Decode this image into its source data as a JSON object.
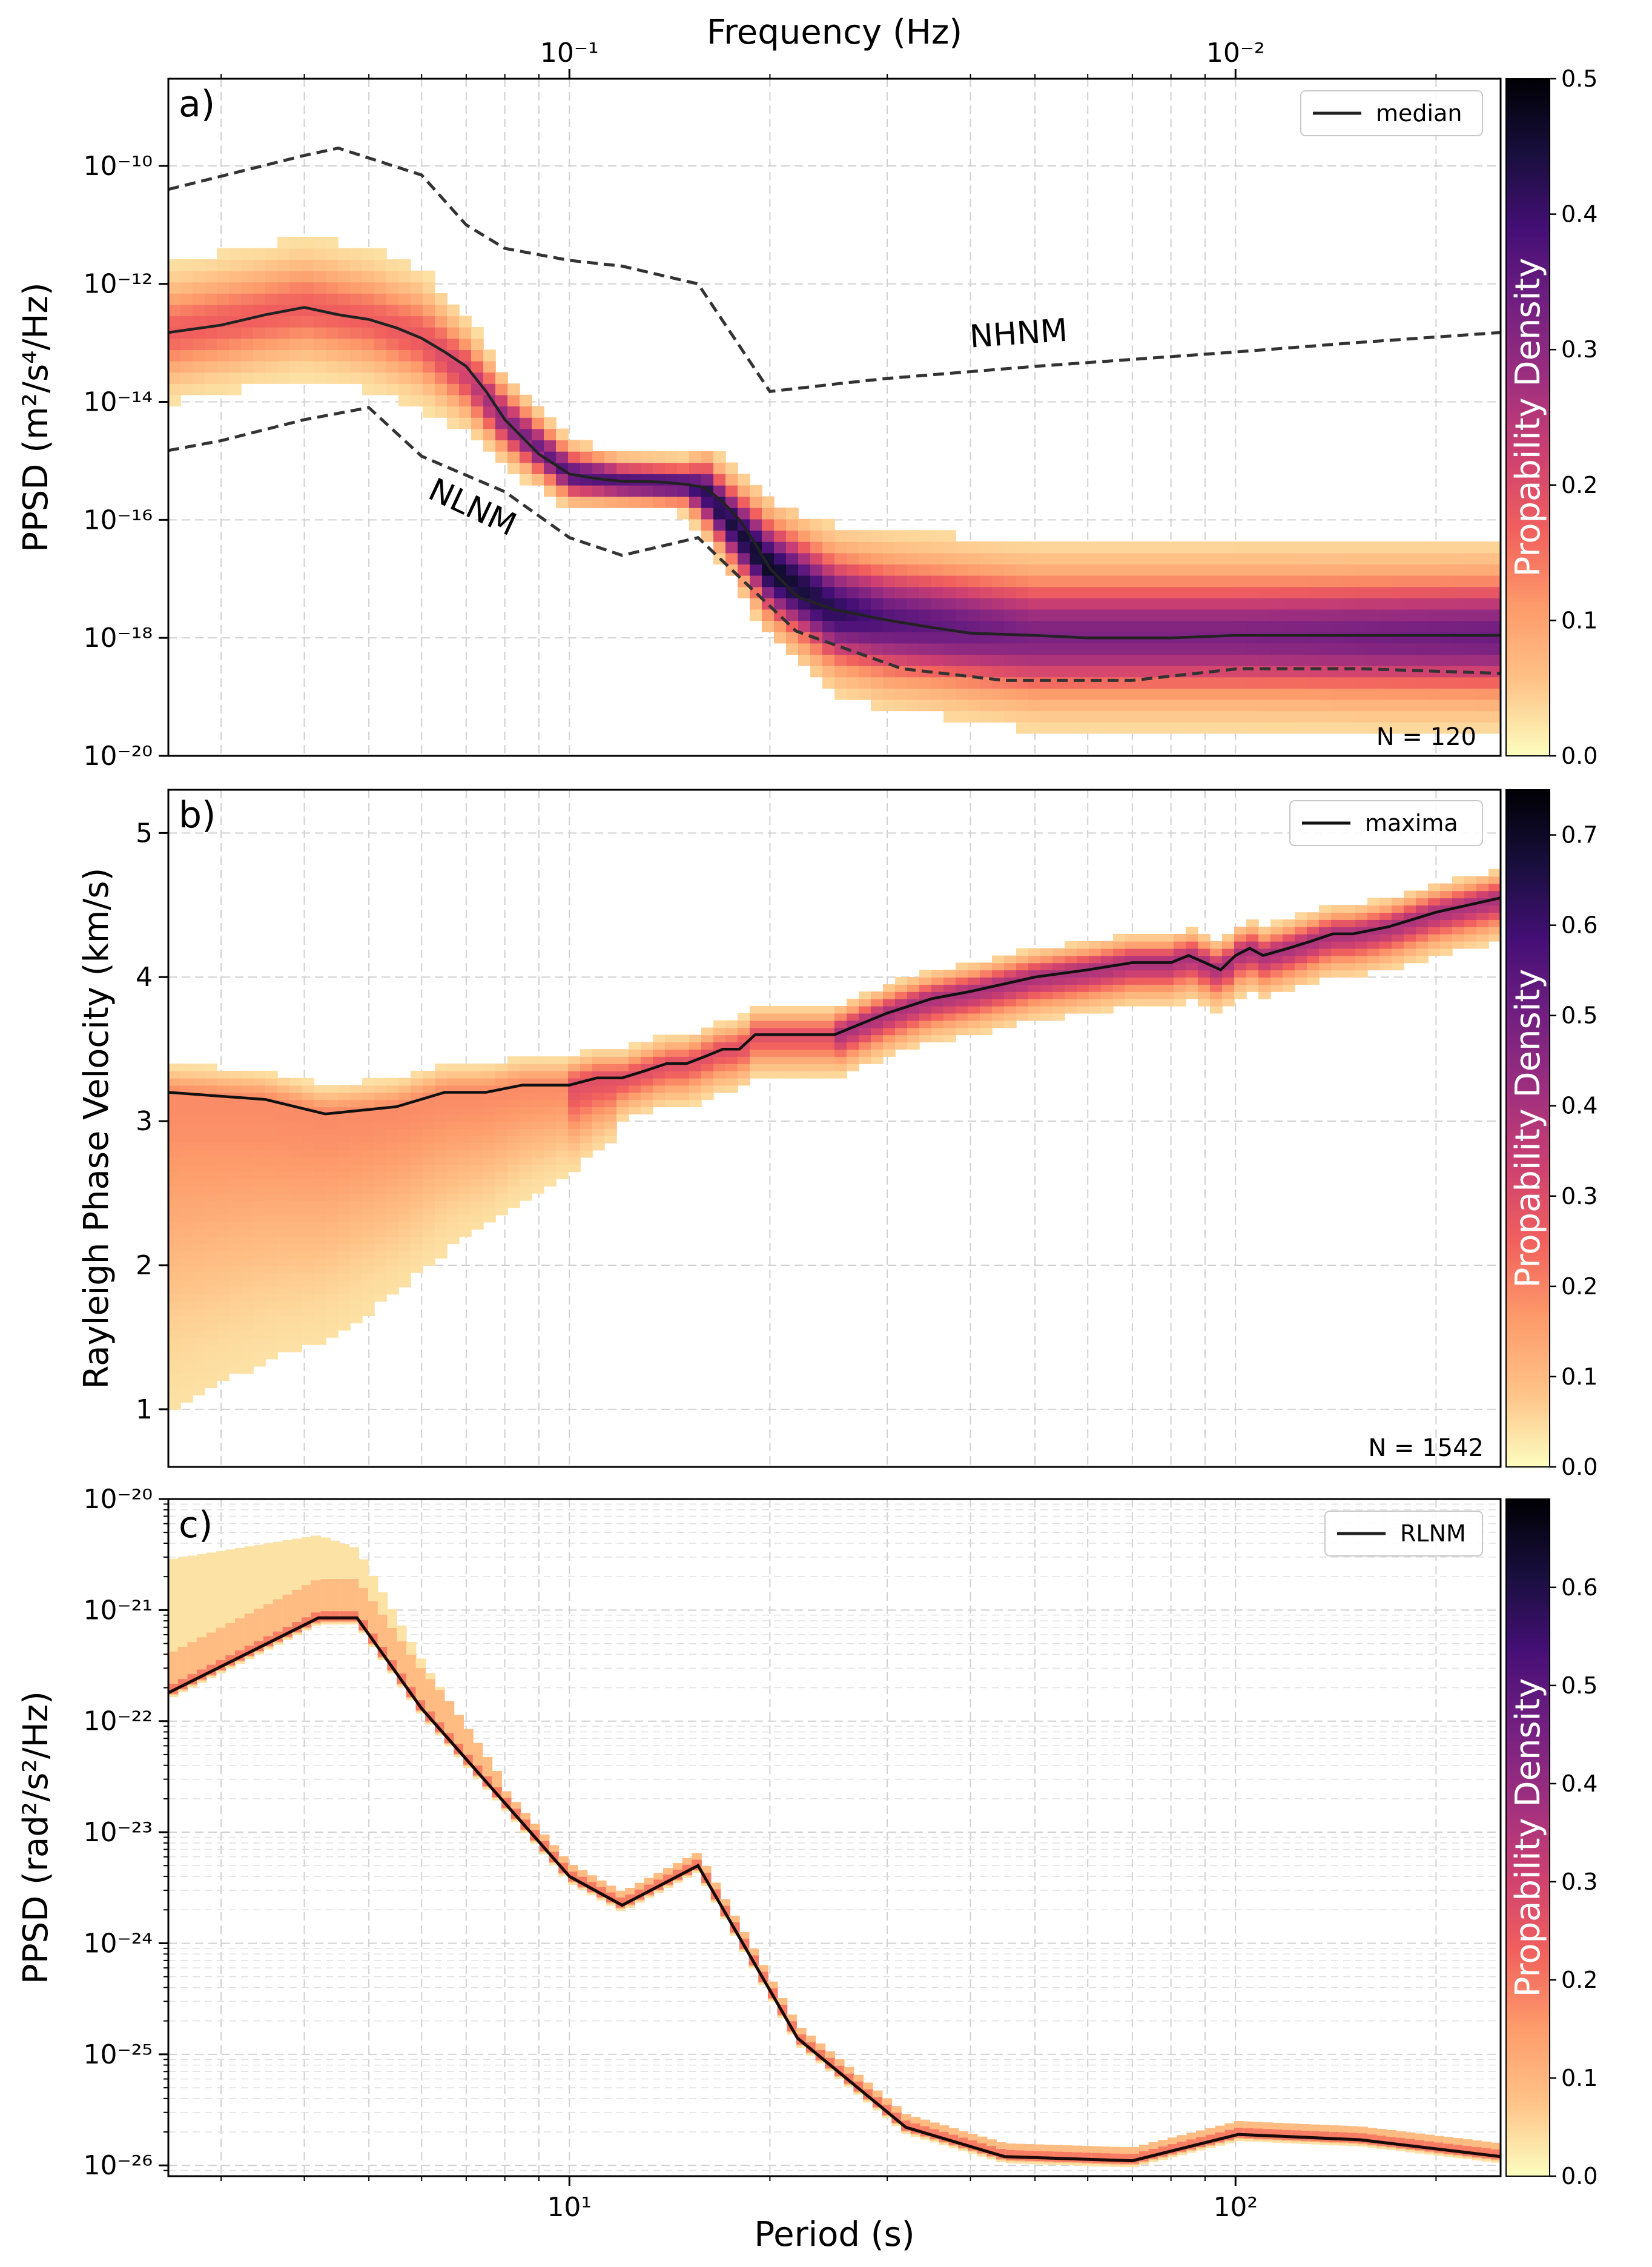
{
  "colors": {
    "magma_stops": [
      "#fcfdbf",
      "#fec287",
      "#fd9a6a",
      "#f1605d",
      "#cd4071",
      "#9e2f7f",
      "#721f81",
      "#440f76",
      "#180f3d",
      "#000004"
    ],
    "line": "#111111",
    "grid": "#d0d0d0"
  },
  "chart_data": [
    {
      "panel_label": "a)",
      "type": "heatmap",
      "x_scale": "log",
      "y_scale": "log",
      "xlim": [
        2.5,
        250
      ],
      "ylim": [
        1e-20,
        3e-09
      ],
      "ylabel": "PPSD (m²/s⁴/Hz)",
      "y_ticks": [
        {
          "label": "10⁻¹⁰",
          "value": 1e-10
        },
        {
          "label": "10⁻¹²",
          "value": 1e-12
        },
        {
          "label": "10⁻¹⁴",
          "value": 1e-14
        },
        {
          "label": "10⁻¹⁶",
          "value": 1e-16
        },
        {
          "label": "10⁻¹⁸",
          "value": 1e-18
        },
        {
          "label": "10⁻²⁰",
          "value": 1e-20
        }
      ],
      "top_axis": {
        "label": "Frequency (Hz)",
        "ticks": [
          {
            "label": "10⁻¹",
            "period": 10
          },
          {
            "label": "10⁻²",
            "period": 100
          }
        ]
      },
      "legend": "median",
      "legend_position": "top-right",
      "n_label": "N = 120",
      "colorbar": {
        "label": "Propability Density",
        "range": [
          0,
          0.5
        ],
        "ticks": [
          "0.0",
          "0.1",
          "0.2",
          "0.3",
          "0.4",
          "0.5"
        ]
      },
      "model_labels": [
        "NHNM",
        "NLNM"
      ],
      "median": {
        "x": [
          2.5,
          3,
          3.5,
          4,
          4.5,
          5,
          5.5,
          6,
          6.5,
          7,
          7.5,
          8,
          9,
          10,
          11,
          12,
          13,
          14,
          15,
          16,
          17,
          18,
          19,
          20,
          22,
          25,
          30,
          35,
          40,
          50,
          60,
          70,
          80,
          100,
          120,
          150,
          200,
          250
        ],
        "y": [
          1.5e-13,
          2e-13,
          3e-13,
          4e-13,
          3e-13,
          2.5e-13,
          1.8e-13,
          1.2e-13,
          7e-14,
          4e-14,
          1.5e-14,
          5e-15,
          1.3e-15,
          6e-16,
          5e-16,
          4.5e-16,
          4.5e-16,
          4.3e-16,
          4e-16,
          3.5e-16,
          2e-16,
          1e-16,
          4e-17,
          1.5e-17,
          5e-18,
          3e-18,
          2e-18,
          1.5e-18,
          1.2e-18,
          1.1e-18,
          1e-18,
          1e-18,
          1e-18,
          1.1e-18,
          1.1e-18,
          1.1e-18,
          1.1e-18,
          1.1e-18
        ]
      },
      "nhnm": {
        "x": [
          2.5,
          4,
          4.5,
          6,
          7,
          8,
          10,
          12,
          15.6,
          20,
          25,
          30,
          50,
          100,
          150,
          250
        ],
        "y": [
          4e-11,
          1.5e-10,
          2e-10,
          7e-11,
          1e-11,
          4e-12,
          2.5e-12,
          2e-12,
          1e-12,
          1.5e-14,
          2e-14,
          2.5e-14,
          4e-14,
          7e-14,
          1e-13,
          1.5e-13
        ]
      },
      "nlnm": {
        "x": [
          2.5,
          3,
          4,
          5,
          6,
          8,
          10,
          12,
          15.6,
          21.9,
          31.6,
          45,
          70,
          101,
          154,
          250
        ],
        "y": [
          1.5e-15,
          2.2e-15,
          5e-15,
          8e-15,
          1.2e-15,
          3e-16,
          5e-17,
          2.5e-17,
          5e-17,
          1.3e-18,
          3e-19,
          1.9e-19,
          1.9e-19,
          3e-19,
          3e-19,
          2.5e-19
        ]
      },
      "density_bands": [
        {
          "x": [
            2.5,
            4,
            5,
            6,
            7,
            8,
            10,
            12,
            15,
            16,
            20,
            25,
            30,
            50,
            100,
            250
          ],
          "center": [
            1.5e-13,
            4e-13,
            2.5e-13,
            1.2e-13,
            3e-14,
            5e-15,
            6e-16,
            4.5e-16,
            4e-16,
            3e-16,
            1.5e-17,
            3e-18,
            2e-18,
            1.1e-18,
            1.1e-18,
            1.1e-18
          ],
          "half_decades": [
            1.2,
            1.2,
            1.2,
            1.2,
            1.0,
            0.8,
            0.6,
            0.5,
            0.5,
            0.8,
            1.2,
            1.4,
            1.5,
            1.6,
            1.6,
            1.6
          ],
          "peak": [
            0.15,
            0.15,
            0.15,
            0.16,
            0.2,
            0.28,
            0.35,
            0.35,
            0.36,
            0.4,
            0.45,
            0.4,
            0.35,
            0.3,
            0.3,
            0.32
          ]
        }
      ]
    },
    {
      "panel_label": "b)",
      "type": "heatmap",
      "x_scale": "log",
      "y_scale": "linear",
      "xlim": [
        2.5,
        250
      ],
      "ylim": [
        0.6,
        5.3
      ],
      "ylabel": "Rayleigh Phase Velocity (km/s)",
      "y_ticks": [
        {
          "label": "5",
          "value": 5
        },
        {
          "label": "4",
          "value": 4
        },
        {
          "label": "3",
          "value": 3
        },
        {
          "label": "2",
          "value": 2
        },
        {
          "label": "1",
          "value": 1
        }
      ],
      "legend": "maxima",
      "legend_position": "top-right",
      "n_label": "N = 1542",
      "colorbar": {
        "label": "Propability Density",
        "range": [
          0,
          0.75
        ],
        "ticks": [
          "0.0",
          "0.1",
          "0.2",
          "0.3",
          "0.4",
          "0.5",
          "0.6",
          "0.7"
        ]
      },
      "maxima": {
        "x": [
          2.5,
          3.5,
          4.3,
          5.5,
          6.5,
          7.5,
          8.5,
          10,
          11,
          12,
          13,
          14,
          15,
          16,
          17,
          18,
          19,
          20,
          25,
          30,
          35,
          40,
          50,
          60,
          70,
          80,
          85,
          90,
          95,
          100,
          105,
          110,
          120,
          130,
          140,
          150,
          170,
          200,
          250
        ],
        "y": [
          3.2,
          3.15,
          3.05,
          3.1,
          3.2,
          3.2,
          3.25,
          3.25,
          3.3,
          3.3,
          3.35,
          3.4,
          3.4,
          3.45,
          3.5,
          3.5,
          3.6,
          3.6,
          3.6,
          3.75,
          3.85,
          3.9,
          4.0,
          4.05,
          4.1,
          4.1,
          4.15,
          4.1,
          4.05,
          4.15,
          4.2,
          4.15,
          4.2,
          4.25,
          4.3,
          4.3,
          4.35,
          4.45,
          4.55
        ]
      }
    },
    {
      "panel_label": "c)",
      "type": "heatmap",
      "x_scale": "log",
      "y_scale": "log",
      "xlim": [
        2.5,
        250
      ],
      "ylim": [
        8e-27,
        1e-20
      ],
      "xlabel": "Period (s)",
      "x_ticks": [
        {
          "label": "10¹",
          "value": 10
        },
        {
          "label": "10²",
          "value": 100
        }
      ],
      "ylabel": "PPSD (rad²/s²/Hz)",
      "y_ticks": [
        {
          "label": "10⁻²⁰",
          "value": 1e-20
        },
        {
          "label": "10⁻²¹",
          "value": 1e-21
        },
        {
          "label": "10⁻²²",
          "value": 1e-22
        },
        {
          "label": "10⁻²³",
          "value": 1e-23
        },
        {
          "label": "10⁻²⁴",
          "value": 1e-24
        },
        {
          "label": "10⁻²⁵",
          "value": 1e-25
        },
        {
          "label": "10⁻²⁶",
          "value": 1e-26
        }
      ],
      "legend": "RLNM",
      "legend_position": "top-right",
      "colorbar": {
        "label": "Propability Density",
        "range": [
          0,
          0.69
        ],
        "ticks": [
          "0.0",
          "0.1",
          "0.2",
          "0.3",
          "0.4",
          "0.5",
          "0.6"
        ]
      },
      "rlnm": {
        "x": [
          2.5,
          4.2,
          4.8,
          6,
          10,
          12,
          15.6,
          22,
          32,
          45,
          70,
          101,
          154,
          250
        ],
        "y": [
          1.8e-22,
          8.5e-22,
          8.5e-22,
          1.3e-22,
          4e-24,
          2.2e-24,
          5e-24,
          1.4e-25,
          2.2e-26,
          1.2e-26,
          1.1e-26,
          1.9e-26,
          1.7e-26,
          1.2e-26
        ]
      }
    }
  ]
}
